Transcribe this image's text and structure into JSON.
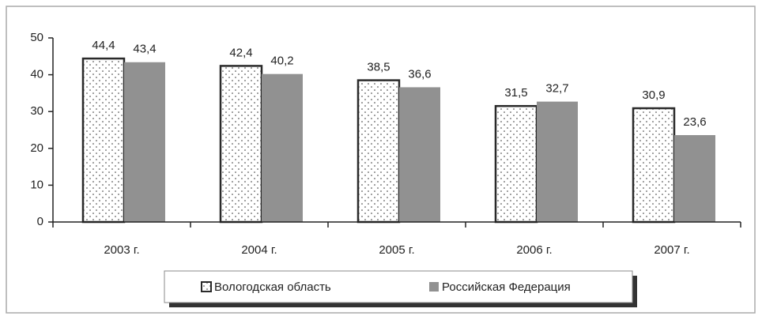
{
  "chart_data": {
    "type": "bar",
    "categories": [
      "2003 г.",
      "2004 г.",
      "2005 г.",
      "2006 г.",
      "2007 г."
    ],
    "series": [
      {
        "name": "Вологодская область",
        "color": "#ffffff",
        "pattern": "dots",
        "values": [
          44.4,
          42.4,
          38.5,
          31.5,
          30.9
        ],
        "value_labels": [
          "44,4",
          "42,4",
          "38,5",
          "31,5",
          "30,9"
        ]
      },
      {
        "name": "Российская Федерация",
        "color": "#919191",
        "values": [
          43.4,
          40.2,
          36.6,
          32.7,
          23.6
        ],
        "value_labels": [
          "43,4",
          "40,2",
          "36,6",
          "32,7",
          "23,6"
        ]
      }
    ],
    "ylim": [
      0,
      50
    ],
    "yticks": [
      0,
      10,
      20,
      30,
      40,
      50
    ],
    "grid": false,
    "legend": "bottom"
  }
}
